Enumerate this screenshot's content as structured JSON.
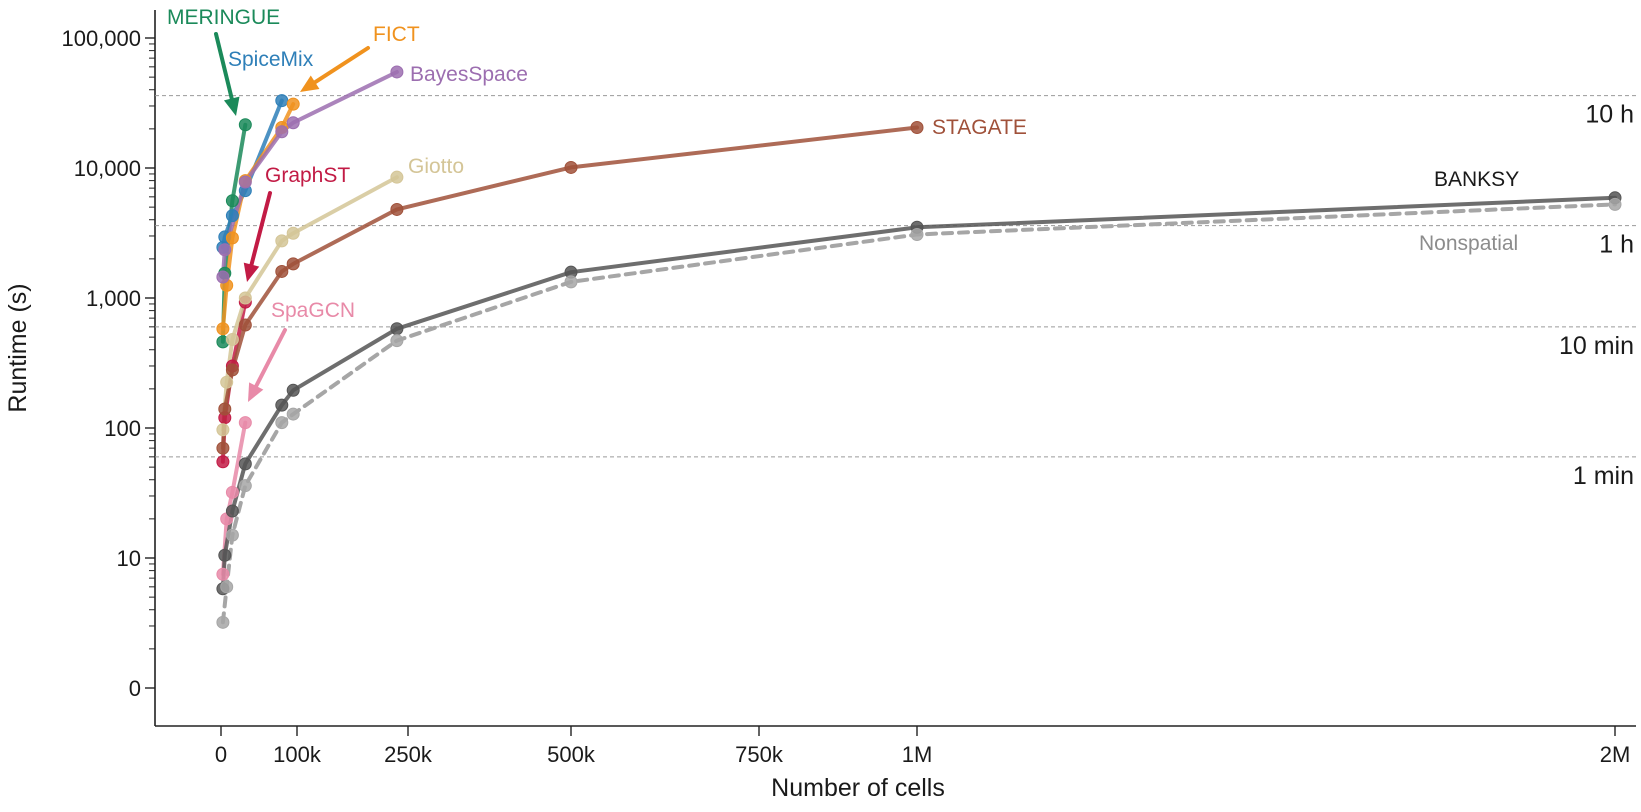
{
  "chart_data": {
    "type": "line",
    "title": "",
    "xlabel": "Number of cells",
    "ylabel": "Runtime (s)",
    "x_scale": "custom-nonlinear",
    "y_scale": "log",
    "grid": false,
    "x_ticks": [
      {
        "value": 0,
        "label": "0"
      },
      {
        "value": 100000,
        "label": "100k"
      },
      {
        "value": 250000,
        "label": "250k"
      },
      {
        "value": 500000,
        "label": "500k"
      },
      {
        "value": 750000,
        "label": "750k"
      },
      {
        "value": 1000000,
        "label": "1M"
      },
      {
        "value": 2000000,
        "label": "2M"
      }
    ],
    "y_ticks": [
      {
        "value": 0,
        "label": "0"
      },
      {
        "value": 10,
        "label": "10"
      },
      {
        "value": 100,
        "label": "100"
      },
      {
        "value": 1000,
        "label": "1,000"
      },
      {
        "value": 10000,
        "label": "10,000"
      },
      {
        "value": 100000,
        "label": "100,000"
      }
    ],
    "reference_lines": [
      {
        "value": 60,
        "label": "1 min"
      },
      {
        "value": 600,
        "label": "10 min"
      },
      {
        "value": 3600,
        "label": "1 h"
      },
      {
        "value": 36000,
        "label": "10 h"
      }
    ],
    "series": [
      {
        "name": "MERINGUE",
        "color": "#1b8a5a",
        "dashed": false,
        "x": [
          2500,
          5000,
          15000,
          32000
        ],
        "y": [
          460,
          1550,
          5600,
          21500
        ]
      },
      {
        "name": "SpiceMix",
        "color": "#2e7fb8",
        "dashed": false,
        "x": [
          2500,
          5000,
          15000,
          32000,
          80000
        ],
        "y": [
          2450,
          2950,
          4300,
          6700,
          33000
        ]
      },
      {
        "name": "FICT",
        "color": "#f0921e",
        "dashed": false,
        "x": [
          2500,
          7500,
          15000,
          32000,
          80000,
          95000
        ],
        "y": [
          580,
          1250,
          2900,
          8000,
          20500,
          31000
        ]
      },
      {
        "name": "BayesSpace",
        "color": "#9c6eb0",
        "dashed": false,
        "x": [
          2500,
          5000,
          32000,
          80000,
          95000,
          235000
        ],
        "y": [
          1450,
          2350,
          7800,
          19000,
          22300,
          54800
        ]
      },
      {
        "name": "GraphST",
        "color": "#c21b45",
        "dashed": false,
        "x": [
          2500,
          5000,
          15000,
          32000
        ],
        "y": [
          55,
          120,
          300,
          930
        ]
      },
      {
        "name": "Giotto",
        "color": "#d4c597",
        "dashed": false,
        "x": [
          2500,
          7500,
          15000,
          32000,
          80000,
          95000,
          235000
        ],
        "y": [
          97,
          225,
          480,
          1000,
          2750,
          3150,
          8500
        ]
      },
      {
        "name": "STAGATE",
        "color": "#a0513a",
        "dashed": false,
        "x": [
          2500,
          5000,
          15000,
          32000,
          80000,
          95000,
          235000,
          500000,
          1000000
        ],
        "y": [
          70,
          140,
          280,
          620,
          1600,
          1830,
          4800,
          10100,
          20500
        ]
      },
      {
        "name": "SpaGCN",
        "color": "#e88aa8",
        "dashed": false,
        "x": [
          2500,
          7500,
          15000,
          32000
        ],
        "y": [
          7.5,
          20,
          32,
          110
        ]
      },
      {
        "name": "BANKSY",
        "color": "#555555",
        "dashed": false,
        "x": [
          2500,
          5000,
          15000,
          32000,
          80000,
          95000,
          235000,
          500000,
          1000000,
          2000000
        ],
        "y": [
          5.8,
          10.5,
          23,
          53,
          150,
          195,
          580,
          1580,
          3500,
          5900
        ]
      },
      {
        "name": "Nonspatial",
        "color": "#a6a6a6",
        "dashed": true,
        "x": [
          2500,
          7500,
          15000,
          32000,
          80000,
          95000,
          235000,
          500000,
          1000000,
          2000000
        ],
        "y": [
          3.2,
          6,
          15,
          36,
          110,
          128,
          470,
          1330,
          3080,
          5250
        ]
      }
    ]
  }
}
